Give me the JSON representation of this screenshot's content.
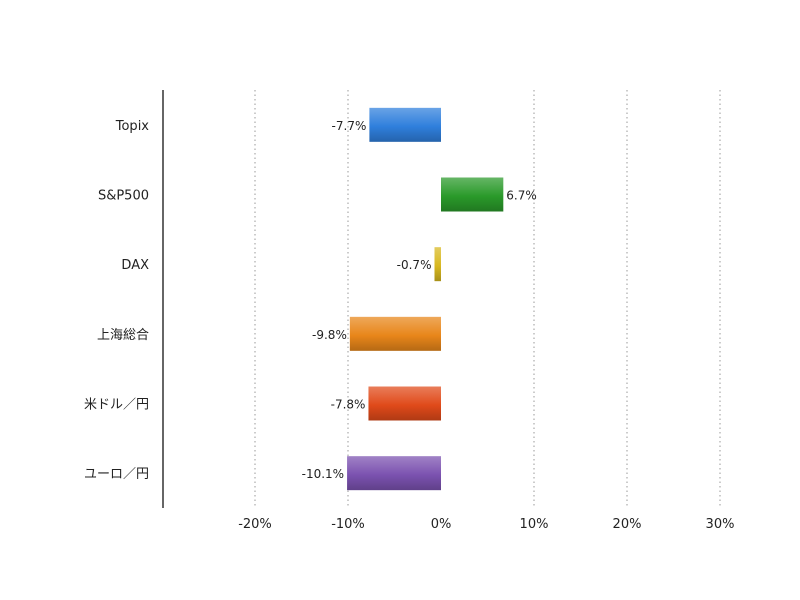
{
  "chart_data": {
    "type": "bar",
    "orientation": "horizontal",
    "categories": [
      "Topix",
      "S&P500",
      "DAX",
      "上海総合",
      "米ドル／円",
      "ユーロ／円"
    ],
    "values": [
      -7.7,
      6.7,
      -0.7,
      -9.8,
      -7.8,
      -10.1
    ],
    "value_labels": [
      "-7.7%",
      "6.7%",
      "-0.7%",
      "-9.8%",
      "-7.8%",
      "-10.1%"
    ],
    "colors": [
      "#2f7fdc",
      "#2a9a2a",
      "#d8b820",
      "#e8861a",
      "#e04a1a",
      "#7b52b0"
    ],
    "x_ticks": [
      -20,
      -10,
      0,
      10,
      20,
      30
    ],
    "x_tick_labels": [
      "-20%",
      "-10%",
      "0%",
      "10%",
      "20%",
      "30%"
    ],
    "xlim": [
      -30,
      30
    ],
    "grid": "vertical-dotted",
    "title": "",
    "xlabel": "",
    "ylabel": ""
  }
}
